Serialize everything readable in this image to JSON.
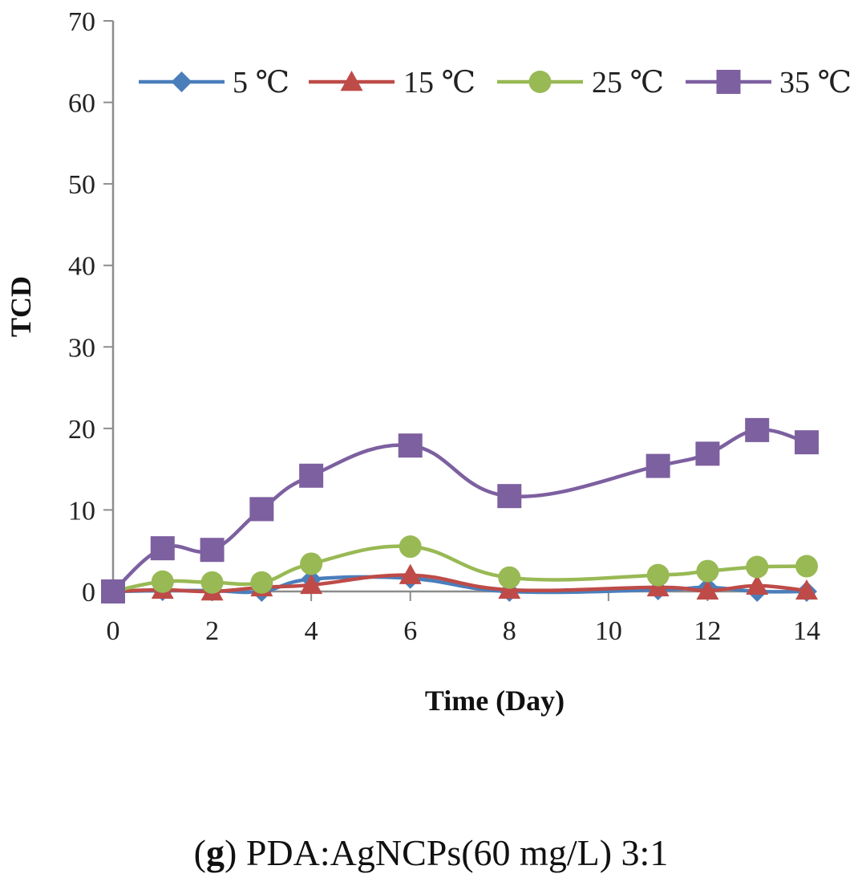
{
  "chart_data": {
    "type": "line",
    "title": "",
    "xlabel": "Time (Day)",
    "ylabel": "TCD",
    "xlim": [
      0,
      14
    ],
    "ylim": [
      0,
      70
    ],
    "xticks": [
      0,
      2,
      4,
      6,
      8,
      10,
      12,
      14
    ],
    "yticks": [
      0,
      10,
      20,
      30,
      40,
      50,
      60,
      70
    ],
    "legend_position": "top",
    "x": [
      0,
      1,
      2,
      3,
      4,
      6,
      8,
      11,
      12,
      13,
      14
    ],
    "series": [
      {
        "name": "5 ℃",
        "color": "#4a7ebb",
        "marker": "diamond",
        "values": [
          0,
          0.1,
          0.1,
          0,
          1.5,
          1.6,
          0,
          0.2,
          0.5,
          0,
          0
        ]
      },
      {
        "name": "15 ℃",
        "color": "#be4b48",
        "marker": "triangle",
        "values": [
          0,
          0.2,
          0,
          0.5,
          0.8,
          2.0,
          0.2,
          0.5,
          0.1,
          0.7,
          0.1
        ]
      },
      {
        "name": "25 ℃",
        "color": "#98b954",
        "marker": "circle",
        "values": [
          0,
          1.2,
          1.1,
          1.1,
          3.4,
          5.5,
          1.7,
          2.0,
          2.5,
          3.0,
          3.1
        ]
      },
      {
        "name": "35 ℃",
        "color": "#7d60a0",
        "marker": "square",
        "values": [
          0,
          5.3,
          5.1,
          10.1,
          14.2,
          17.9,
          11.7,
          15.4,
          16.9,
          19.8,
          18.3
        ]
      }
    ]
  },
  "caption": {
    "label": "g",
    "text": "PDA:AgNCPs(60 mg/L) 3:1"
  }
}
